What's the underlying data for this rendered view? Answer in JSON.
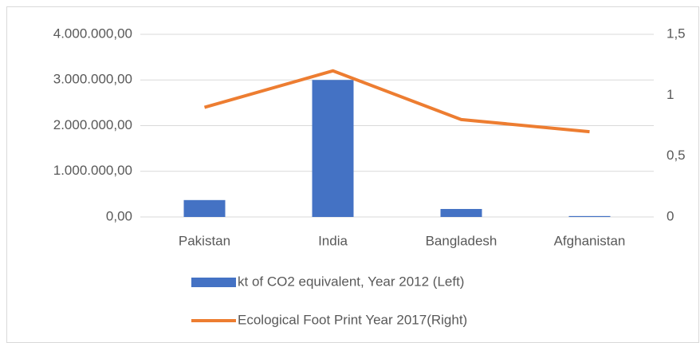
{
  "chart_data": {
    "type": "bar",
    "categories": [
      "Pakistan",
      "India",
      "Bangladesh",
      "Afghanistan"
    ],
    "series": [
      {
        "name": "kt of CO2 equivalent, Year 2012 (Left)",
        "color": "#4472c4",
        "type": "bar",
        "values": [
          370000,
          3000000,
          175000,
          20000
        ]
      },
      {
        "name": "Ecological Foot Print Year 2017(Right)",
        "color": "#ed7d31",
        "type": "line",
        "axis": "y2",
        "values": [
          0.9,
          1.2,
          0.8,
          0.7
        ]
      }
    ],
    "ylim": [
      0,
      4000000
    ],
    "yticks": [
      {
        "value": 0,
        "label": "0,00"
      },
      {
        "value": 1000000,
        "label": "1.000.000,00"
      },
      {
        "value": 2000000,
        "label": "2.000.000,00"
      },
      {
        "value": 3000000,
        "label": "3.000.000,00"
      },
      {
        "value": 4000000,
        "label": "4.000.000,00"
      }
    ],
    "y2lim": [
      0,
      1.5
    ],
    "y2ticks": [
      0,
      {
        "value": 0.5,
        "label": "0,5"
      },
      1,
      {
        "value": 1.5,
        "label": "1,5"
      }
    ],
    "grid": true,
    "legend": "bottom"
  }
}
